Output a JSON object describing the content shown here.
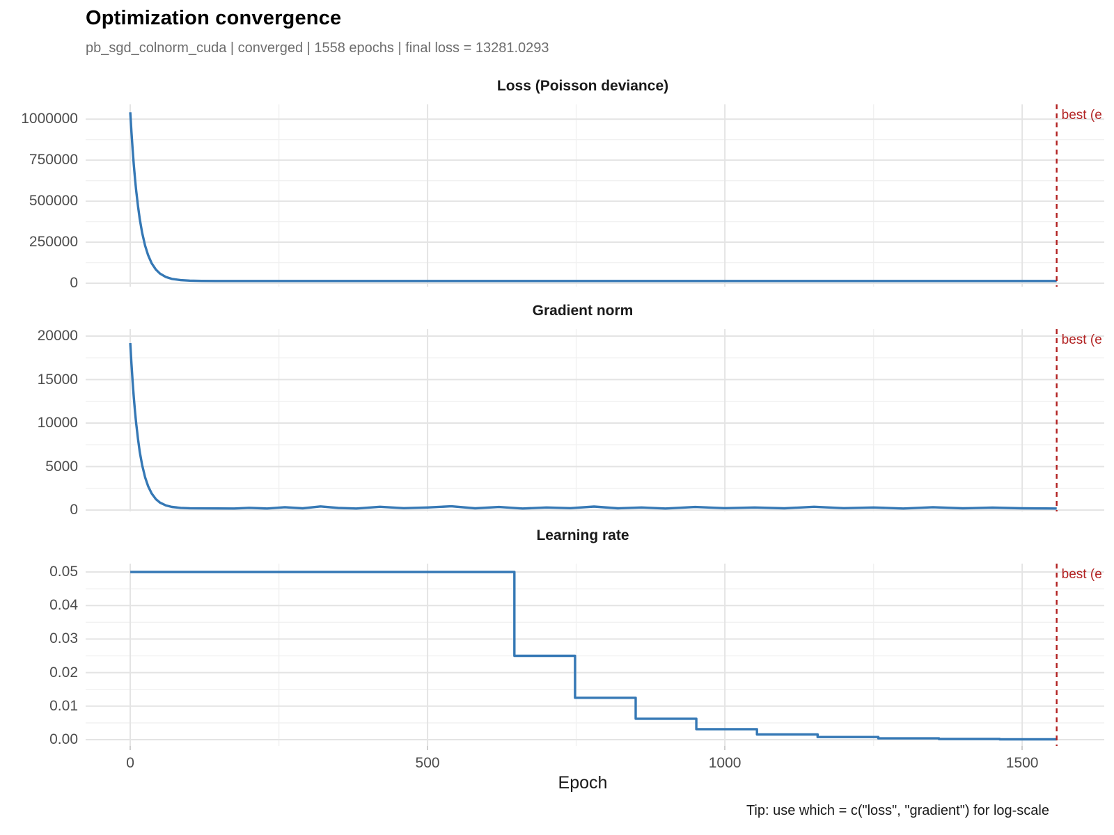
{
  "title": "Optimization convergence",
  "subtitle": "pb_sgd_colnorm_cuda | converged | 1558 epochs | final loss = 13281.0293",
  "caption": "Tip: use which = c(\"loss\", \"gradient\") for log-scale",
  "colors": {
    "line": "#3578b5",
    "best": "#b22222",
    "grid_major": "#e4e4e4",
    "grid_minor": "#f1f1f1",
    "tick_mark": "#cfcfcf",
    "tick_text": "#4d4d4d",
    "subtitle_text": "#6e6e6e"
  },
  "best_marker": {
    "epoch": 1558,
    "label": "best (e"
  },
  "x_axis": {
    "label": "Epoch",
    "xlim": [
      -75,
      1638
    ],
    "ticks": {
      "values": [
        0,
        500,
        1000,
        1500
      ],
      "labels": [
        "0",
        "500",
        "1000",
        "1500"
      ],
      "minor": [
        250,
        750,
        1250
      ]
    }
  },
  "chart_data": [
    {
      "type": "line",
      "title": "Loss (Poisson deviance)",
      "series_name": "loss",
      "ylim": [
        -21400,
        1090000
      ],
      "yticks": {
        "values": [
          0,
          250000,
          500000,
          750000,
          1000000
        ],
        "labels": [
          "0",
          "250000",
          "500000",
          "750000",
          "1000000"
        ],
        "minor": [
          125000,
          375000,
          625000,
          875000
        ]
      },
      "points": [
        [
          0,
          1042000
        ],
        [
          2,
          921000
        ],
        [
          4,
          814500
        ],
        [
          6,
          720300
        ],
        [
          8,
          637200
        ],
        [
          10,
          563900
        ],
        [
          13,
          469800
        ],
        [
          16,
          391700
        ],
        [
          20,
          308000
        ],
        [
          25,
          228900
        ],
        [
          30,
          171000
        ],
        [
          36,
          121700
        ],
        [
          43,
          83300
        ],
        [
          50,
          58500
        ],
        [
          60,
          37500
        ],
        [
          70,
          26200
        ],
        [
          85,
          18300
        ],
        [
          100,
          15300
        ],
        [
          120,
          13850
        ],
        [
          145,
          13400
        ],
        [
          175,
          13300
        ],
        [
          210,
          13285
        ],
        [
          250,
          13281
        ],
        [
          350,
          13281
        ],
        [
          500,
          13281
        ],
        [
          700,
          13281
        ],
        [
          900,
          13281
        ],
        [
          1100,
          13281
        ],
        [
          1300,
          13281
        ],
        [
          1450,
          13281
        ],
        [
          1558,
          13281
        ]
      ]
    },
    {
      "type": "line",
      "title": "Gradient norm",
      "series_name": "gradient",
      "ylim": [
        -160,
        20800
      ],
      "yticks": {
        "values": [
          0,
          5000,
          10000,
          15000,
          20000
        ],
        "labels": [
          "0",
          "5000",
          "10000",
          "15000",
          "20000"
        ],
        "minor": [
          2500,
          7500,
          12500,
          17500
        ]
      },
      "points": [
        [
          0,
          19200
        ],
        [
          2,
          16830
        ],
        [
          4,
          14750
        ],
        [
          6,
          12930
        ],
        [
          8,
          11340
        ],
        [
          10,
          9950
        ],
        [
          13,
          8180
        ],
        [
          16,
          6700
        ],
        [
          20,
          5190
        ],
        [
          25,
          3770
        ],
        [
          30,
          2750
        ],
        [
          36,
          1910
        ],
        [
          43,
          1260
        ],
        [
          50,
          860
        ],
        [
          60,
          530
        ],
        [
          70,
          360
        ],
        [
          85,
          250
        ],
        [
          100,
          205
        ],
        [
          120,
          190
        ],
        [
          145,
          182
        ],
        [
          175,
          180
        ],
        [
          200,
          260
        ],
        [
          230,
          180
        ],
        [
          260,
          330
        ],
        [
          290,
          200
        ],
        [
          320,
          420
        ],
        [
          350,
          240
        ],
        [
          380,
          180
        ],
        [
          420,
          380
        ],
        [
          460,
          220
        ],
        [
          500,
          300
        ],
        [
          540,
          430
        ],
        [
          580,
          200
        ],
        [
          620,
          350
        ],
        [
          660,
          180
        ],
        [
          700,
          300
        ],
        [
          740,
          220
        ],
        [
          780,
          400
        ],
        [
          820,
          200
        ],
        [
          860,
          300
        ],
        [
          900,
          180
        ],
        [
          950,
          350
        ],
        [
          1000,
          220
        ],
        [
          1050,
          300
        ],
        [
          1100,
          200
        ],
        [
          1150,
          380
        ],
        [
          1200,
          220
        ],
        [
          1250,
          300
        ],
        [
          1300,
          180
        ],
        [
          1350,
          330
        ],
        [
          1400,
          200
        ],
        [
          1450,
          280
        ],
        [
          1500,
          200
        ],
        [
          1558,
          180
        ]
      ]
    },
    {
      "type": "line",
      "title": "Learning rate",
      "series_name": "learning_rate",
      "ylim": [
        -0.00187,
        0.0525
      ],
      "yticks": {
        "values": [
          0.0,
          0.01,
          0.02,
          0.03,
          0.04,
          0.05
        ],
        "labels": [
          "0.00",
          "0.01",
          "0.02",
          "0.03",
          "0.04",
          "0.05"
        ],
        "minor": [
          0.005,
          0.015,
          0.025,
          0.035,
          0.045
        ]
      },
      "points": [
        [
          0,
          0.05
        ],
        [
          646,
          0.05
        ],
        [
          646,
          0.025
        ],
        [
          748,
          0.025
        ],
        [
          748,
          0.0125
        ],
        [
          850,
          0.0125
        ],
        [
          850,
          0.00625
        ],
        [
          952,
          0.00625
        ],
        [
          952,
          0.003125
        ],
        [
          1054,
          0.003125
        ],
        [
          1054,
          0.0015625
        ],
        [
          1156,
          0.0015625
        ],
        [
          1156,
          0.00078125
        ],
        [
          1258,
          0.00078125
        ],
        [
          1258,
          0.000390625
        ],
        [
          1360,
          0.000390625
        ],
        [
          1360,
          0.0001953125
        ],
        [
          1462,
          0.0001953125
        ],
        [
          1462,
          9.765625e-05
        ],
        [
          1558,
          9.765625e-05
        ]
      ]
    }
  ]
}
